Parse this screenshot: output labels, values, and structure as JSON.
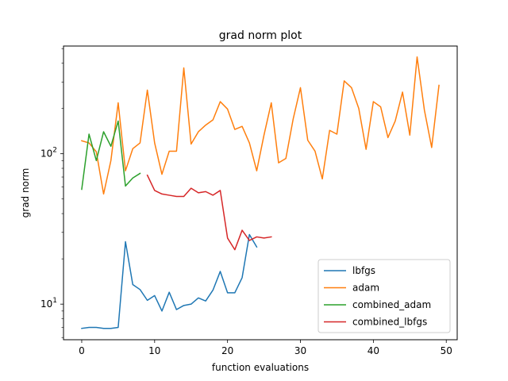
{
  "chart_data": {
    "type": "line",
    "title": "grad norm plot",
    "xlabel": "function evaluations",
    "ylabel": "grad norm",
    "yscale": "log",
    "xlim": [
      -2.5,
      51.5
    ],
    "ylim": [
      5.8,
      520
    ],
    "xticks": [
      0,
      10,
      20,
      30,
      40,
      50
    ],
    "yticks_major": [
      10,
      100
    ],
    "ytick_labels": [
      "10^1",
      "10^2"
    ],
    "grid": false,
    "legend_position": "lower right",
    "series": [
      {
        "name": "lbfgs",
        "color": "#1f77b4",
        "x": [
          0,
          1,
          2,
          3,
          4,
          5,
          6,
          7,
          8,
          9,
          10,
          11,
          12,
          13,
          14,
          15,
          16,
          17,
          18,
          19,
          20,
          21,
          22,
          23,
          24
        ],
        "y": [
          6.9,
          7.0,
          7.0,
          6.9,
          6.9,
          7.0,
          26.0,
          13.5,
          12.5,
          10.6,
          11.4,
          9.0,
          12.0,
          9.2,
          9.8,
          10.0,
          11.0,
          10.5,
          12.4,
          16.5,
          11.9,
          11.9,
          15.0,
          29.0,
          24.0
        ]
      },
      {
        "name": "adam",
        "color": "#ff7f0e",
        "x": [
          0,
          1,
          2,
          3,
          4,
          5,
          6,
          7,
          8,
          9,
          10,
          11,
          12,
          13,
          14,
          15,
          16,
          17,
          18,
          19,
          20,
          21,
          22,
          23,
          24,
          25,
          26,
          27,
          28,
          29,
          30,
          31,
          32,
          33,
          34,
          35,
          36,
          37,
          38,
          39,
          40,
          41,
          42,
          43,
          44,
          45,
          46,
          47,
          48,
          49
        ],
        "y": [
          122,
          118,
          103,
          54,
          90,
          218,
          77,
          108,
          118,
          265,
          118,
          73,
          104,
          104,
          372,
          116,
          140,
          155,
          168,
          222,
          198,
          145,
          152,
          118,
          77,
          133,
          218,
          87,
          93,
          170,
          275,
          123,
          104,
          68,
          143,
          135,
          305,
          275,
          200,
          107,
          222,
          205,
          128,
          165,
          257,
          133,
          440,
          195,
          110,
          285
        ]
      },
      {
        "name": "combined_adam",
        "color": "#2ca02c",
        "x": [
          0,
          1,
          2,
          3,
          4,
          5,
          6,
          7,
          8
        ],
        "y": [
          58,
          135,
          90,
          140,
          112,
          165,
          61,
          69,
          74
        ]
      },
      {
        "name": "combined_lbfgs",
        "color": "#d62728",
        "x": [
          9,
          10,
          11,
          12,
          13,
          14,
          15,
          16,
          17,
          18,
          19,
          20,
          21,
          22,
          23,
          24,
          25,
          26
        ],
        "y": [
          72,
          57,
          54,
          53,
          52,
          52,
          59,
          55,
          56,
          53,
          57,
          27.5,
          23,
          31,
          26.5,
          28,
          27.5,
          28
        ]
      }
    ]
  }
}
